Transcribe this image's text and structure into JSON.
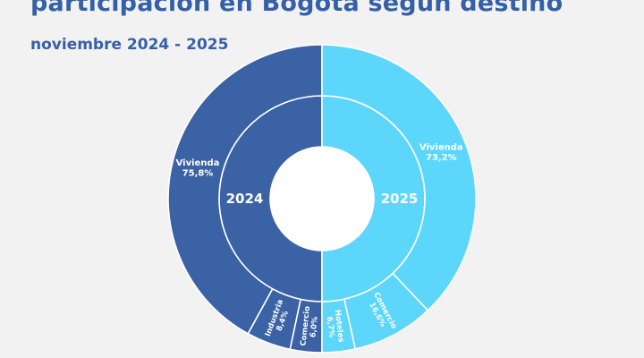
{
  "header": {
    "title": "participación en Bogotá según destino",
    "subtitle": "noviembre 2024 - 2025"
  },
  "colors": {
    "2024": "#3b62a5",
    "2025": "#5dd6fc",
    "title": "#3560a8",
    "background": "#f2f2f2"
  },
  "chart_data": {
    "type": "pie",
    "subtype": "split-sunburst",
    "series": [
      {
        "name": "2024",
        "side": "left",
        "inner_label": "2024",
        "segments": [
          {
            "label": "Vivienda",
            "value_text": "75,8%",
            "value": 75.8
          },
          {
            "label": "Industria",
            "value_text": "8,4%",
            "value": 8.4
          },
          {
            "label": "Comercio",
            "value_text": "6,0%",
            "value": 6.0
          }
        ]
      },
      {
        "name": "2025",
        "side": "right",
        "inner_label": "2025",
        "segments": [
          {
            "label": "Vivienda",
            "value_text": "73,2%",
            "value": 73.2
          },
          {
            "label": "Comercio",
            "value_text": "16,6%",
            "value": 16.6
          },
          {
            "label": "Hoteles",
            "value_text": "6,7%",
            "value": 6.7
          }
        ]
      }
    ]
  }
}
